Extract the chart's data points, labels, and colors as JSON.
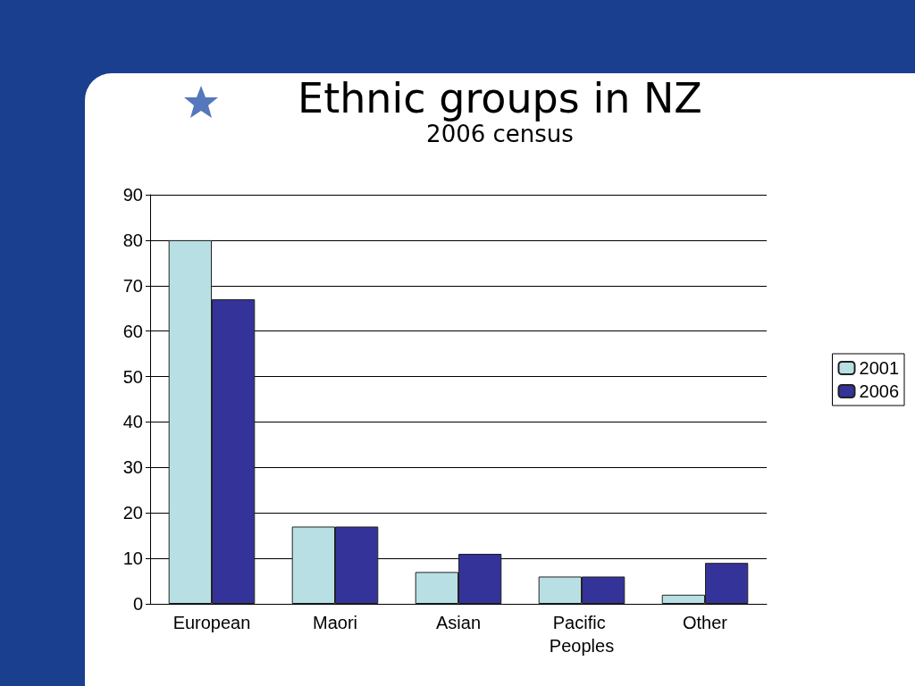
{
  "chart_data": {
    "type": "bar",
    "title": "Ethnic groups in NZ",
    "subtitle": "2006 census",
    "categories": [
      "European",
      "Maori",
      "Asian",
      "Pacific Peoples",
      "Other"
    ],
    "series": [
      {
        "name": "2001",
        "color": "#b8e0e4",
        "values": [
          80,
          17,
          7,
          6,
          2
        ]
      },
      {
        "name": "2006",
        "color": "#333399",
        "values": [
          67,
          17,
          11,
          6,
          9
        ]
      }
    ],
    "ylim": [
      0,
      90
    ],
    "yticks": [
      0,
      10,
      20,
      30,
      40,
      50,
      60,
      70,
      80,
      90
    ],
    "grid": "y",
    "legend": "right"
  }
}
